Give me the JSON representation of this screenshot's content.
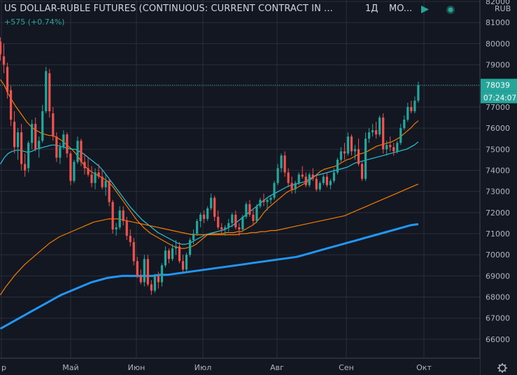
{
  "header": {
    "title": "US DOLLAR-RUBLE FUTURES (CONTINUOUS: CURRENT CONTRACT IN ...",
    "interval": "1Д",
    "exchange": "MO...",
    "change": "+575 (+0.74%)"
  },
  "axis": {
    "currency": "RUB",
    "settings_icon": "gear-icon"
  },
  "colors": {
    "background": "#131722",
    "up": "#26a69a",
    "down": "#ef5350",
    "ma_fast": "#f57c00",
    "ma_mid": "#26c6da",
    "ma_slow": "#f57c00",
    "ma_long": "#2196f3"
  },
  "chart_data": {
    "type": "candlestick",
    "ylim": [
      65300,
      82400
    ],
    "yticks": [
      66000,
      67000,
      68000,
      69000,
      70000,
      71000,
      72000,
      73000,
      74000,
      75000,
      76000,
      77000,
      78000,
      79000,
      80000,
      81000,
      82000
    ],
    "ytick_labels": [
      "66000",
      "67000",
      "68000",
      "69000",
      "70000",
      "71000",
      "72000",
      "73000",
      "74000",
      "75000",
      "76000",
      "77000",
      "78000",
      "79000",
      "80000",
      "81000",
      "82000"
    ],
    "xticks": [
      "Апр",
      "Май",
      "Июн",
      "Июл",
      "Авг",
      "Сен",
      "Окт"
    ],
    "xtick_labels": [
      "р",
      "Май",
      "Июн",
      "Июл",
      "Авг",
      "Сен",
      "Окт"
    ],
    "last_price": {
      "value": 78039,
      "label": "78039",
      "countdown": "07:24:07"
    },
    "ohlc": [
      [
        80100,
        80300,
        79200,
        79500
      ],
      [
        79400,
        80000,
        78600,
        79000
      ],
      [
        78900,
        79100,
        77400,
        77700
      ],
      [
        77800,
        78000,
        76100,
        76400
      ],
      [
        76300,
        76800,
        74800,
        75100
      ],
      [
        75100,
        76000,
        74500,
        75800
      ],
      [
        75800,
        76200,
        74000,
        74300
      ],
      [
        74300,
        74800,
        73700,
        74000
      ],
      [
        74100,
        75400,
        73900,
        75300
      ],
      [
        75300,
        76400,
        75000,
        76200
      ],
      [
        76200,
        76500,
        74900,
        75000
      ],
      [
        75000,
        75600,
        74600,
        75400
      ],
      [
        75400,
        77100,
        75300,
        76800
      ],
      [
        76800,
        78900,
        76700,
        78700
      ],
      [
        78600,
        78800,
        76500,
        76800
      ],
      [
        76700,
        77000,
        75400,
        75600
      ],
      [
        75600,
        75800,
        74400,
        74600
      ],
      [
        74600,
        75300,
        74300,
        75100
      ],
      [
        75100,
        75900,
        75000,
        75700
      ],
      [
        75700,
        75800,
        74600,
        74800
      ],
      [
        74800,
        74900,
        73300,
        73500
      ],
      [
        73500,
        74500,
        73400,
        74400
      ],
      [
        74400,
        75600,
        74300,
        75400
      ],
      [
        75400,
        75500,
        74200,
        74400
      ],
      [
        74400,
        74800,
        73800,
        74100
      ],
      [
        74100,
        74600,
        73700,
        73800
      ],
      [
        73800,
        74200,
        73200,
        73400
      ],
      [
        73400,
        74100,
        73100,
        73900
      ],
      [
        73900,
        74300,
        73600,
        73700
      ],
      [
        73700,
        74000,
        73100,
        73200
      ],
      [
        73200,
        73800,
        72800,
        73500
      ],
      [
        73500,
        73600,
        72300,
        72500
      ],
      [
        72500,
        72600,
        71000,
        71200
      ],
      [
        71200,
        71500,
        70900,
        71300
      ],
      [
        71300,
        72300,
        71200,
        72100
      ],
      [
        72100,
        72300,
        71400,
        71600
      ],
      [
        71600,
        71800,
        70700,
        70900
      ],
      [
        70900,
        71200,
        70400,
        70600
      ],
      [
        70600,
        70800,
        69500,
        69700
      ],
      [
        69700,
        69900,
        68900,
        69000
      ],
      [
        69000,
        69300,
        68600,
        68700
      ],
      [
        68700,
        70000,
        68500,
        69800
      ],
      [
        69800,
        70000,
        68500,
        68600
      ],
      [
        68600,
        68800,
        68100,
        68300
      ],
      [
        68300,
        69100,
        68200,
        69000
      ],
      [
        69000,
        69200,
        68400,
        68700
      ],
      [
        68700,
        69600,
        68500,
        69500
      ],
      [
        69500,
        70400,
        69400,
        70200
      ],
      [
        70200,
        70300,
        69600,
        69800
      ],
      [
        69800,
        70500,
        69700,
        70300
      ],
      [
        70300,
        70700,
        70000,
        70400
      ],
      [
        70400,
        70600,
        69600,
        69700
      ],
      [
        69700,
        70000,
        69200,
        69300
      ],
      [
        69300,
        70100,
        69200,
        70000
      ],
      [
        70000,
        70800,
        69900,
        70700
      ],
      [
        70700,
        71200,
        70500,
        71000
      ],
      [
        71000,
        71700,
        70900,
        71600
      ],
      [
        71600,
        72000,
        71300,
        71900
      ],
      [
        71900,
        72100,
        71500,
        71700
      ],
      [
        71700,
        72300,
        71600,
        72200
      ],
      [
        72200,
        72900,
        72100,
        72700
      ],
      [
        72700,
        72800,
        71600,
        71800
      ],
      [
        71800,
        72100,
        71200,
        71300
      ],
      [
        71300,
        71500,
        71000,
        71200
      ],
      [
        71200,
        71400,
        70900,
        71300
      ],
      [
        71300,
        71700,
        71100,
        71500
      ],
      [
        71500,
        72000,
        71300,
        71900
      ],
      [
        71900,
        72100,
        71200,
        71300
      ],
      [
        71300,
        71500,
        70900,
        71200
      ],
      [
        71200,
        71900,
        71100,
        71800
      ],
      [
        71800,
        72500,
        71700,
        72400
      ],
      [
        72400,
        72600,
        71800,
        71900
      ],
      [
        71900,
        72200,
        71400,
        71600
      ],
      [
        71600,
        72400,
        71500,
        72300
      ],
      [
        72300,
        72700,
        72200,
        72600
      ],
      [
        72600,
        72900,
        72300,
        72500
      ],
      [
        72500,
        72700,
        72100,
        72600
      ],
      [
        72600,
        72800,
        72400,
        72700
      ],
      [
        72700,
        73500,
        72600,
        73400
      ],
      [
        73400,
        74300,
        73300,
        74100
      ],
      [
        74100,
        74800,
        73900,
        74700
      ],
      [
        74700,
        74900,
        73700,
        73900
      ],
      [
        73900,
        74100,
        73200,
        73400
      ],
      [
        73400,
        73700,
        72900,
        73100
      ],
      [
        73100,
        73500,
        72900,
        73400
      ],
      [
        73400,
        73900,
        73300,
        73800
      ],
      [
        73800,
        74200,
        73600,
        73700
      ],
      [
        73700,
        73900,
        73200,
        73300
      ],
      [
        73300,
        73900,
        73200,
        73800
      ],
      [
        73800,
        74100,
        73500,
        73600
      ],
      [
        73600,
        73800,
        73000,
        73100
      ],
      [
        73100,
        73500,
        73000,
        73400
      ],
      [
        73400,
        73800,
        73300,
        73700
      ],
      [
        73700,
        73900,
        73200,
        73300
      ],
      [
        73300,
        73600,
        73100,
        73500
      ],
      [
        73500,
        74100,
        73400,
        73900
      ],
      [
        73900,
        74600,
        73800,
        74500
      ],
      [
        74500,
        75100,
        74400,
        74900
      ],
      [
        74900,
        75300,
        74500,
        74800
      ],
      [
        74800,
        75800,
        74700,
        75600
      ],
      [
        75600,
        75700,
        74700,
        74900
      ],
      [
        74900,
        75200,
        74500,
        75000
      ],
      [
        75000,
        75500,
        74200,
        74300
      ],
      [
        74300,
        74400,
        73500,
        73600
      ],
      [
        73600,
        75800,
        73500,
        75500
      ],
      [
        75500,
        76000,
        75300,
        75800
      ],
      [
        75800,
        76200,
        75600,
        75900
      ],
      [
        75900,
        76300,
        75500,
        75700
      ],
      [
        75700,
        76600,
        75600,
        76500
      ],
      [
        76500,
        76700,
        74800,
        75000
      ],
      [
        75000,
        75400,
        74700,
        75200
      ],
      [
        75200,
        75600,
        74900,
        75100
      ],
      [
        75100,
        75300,
        74700,
        74900
      ],
      [
        74900,
        75400,
        74800,
        75300
      ],
      [
        75300,
        76200,
        75200,
        76000
      ],
      [
        76000,
        76600,
        75900,
        76400
      ],
      [
        76400,
        77200,
        76300,
        77000
      ],
      [
        77000,
        77300,
        76700,
        76800
      ],
      [
        76800,
        77500,
        76700,
        77300
      ],
      [
        77300,
        78200,
        77200,
        78039
      ]
    ],
    "series": [
      {
        "values": [
          78300,
          78050,
          77650,
          77350,
          77050,
          76800,
          76550,
          76300,
          76100,
          75950,
          75850,
          75750,
          75700,
          75650,
          75650,
          75550,
          75450,
          75300,
          75150,
          75000,
          74800,
          74550,
          74300,
          74100,
          73950,
          73850,
          73750,
          73650,
          73550,
          73400,
          73200,
          72950,
          72700,
          72450,
          72200,
          71950,
          71700,
          71500,
          71300,
          71150,
          71000,
          70900,
          70800,
          70700,
          70600,
          70500,
          70400,
          70350,
          70300,
          70300,
          70350,
          70400,
          70500,
          70650,
          70800,
          70950,
          71000,
          71000,
          71000,
          71000,
          71050,
          71050,
          71050,
          71100,
          71100,
          71200,
          71300,
          71400,
          71550,
          71750,
          72000,
          72200,
          72350,
          72500,
          72650,
          72800,
          72950,
          73050,
          73100,
          73200,
          73300,
          73400,
          73500,
          73650,
          73800,
          73950,
          74050,
          74100,
          74150,
          74200,
          74300,
          74400,
          74500,
          74550,
          74650,
          74750,
          74800,
          74850,
          74950,
          75050,
          75150,
          75200,
          75250,
          75300,
          75350,
          75450,
          75550,
          75700,
          75850,
          76000,
          76200,
          76350
        ]
      },
      {
        "values": [
          74300,
          74600,
          74800,
          74900,
          74950,
          74950,
          74900,
          74850,
          74900,
          75000,
          75050,
          75100,
          75150,
          75200,
          75200,
          75150,
          75100,
          75050,
          75000,
          75000,
          74900,
          74800,
          74650,
          74500,
          74350,
          74200,
          74000,
          73750,
          73500,
          73250,
          73000,
          72750,
          72500,
          72250,
          72050,
          71850,
          71650,
          71500,
          71350,
          71200,
          71050,
          70950,
          70850,
          70750,
          70650,
          70550,
          70500,
          70500,
          70550,
          70650,
          70750,
          70850,
          70950,
          71000,
          71050,
          71100,
          71150,
          71200,
          71300,
          71400,
          71550,
          71700,
          71850,
          72000,
          72150,
          72300,
          72450,
          72600,
          72750,
          72850,
          72950,
          73050,
          73150,
          73250,
          73300,
          73350,
          73400,
          73450,
          73550,
          73650,
          73750,
          73800,
          73850,
          73900,
          73950,
          74000,
          74050,
          74100,
          74150,
          74250,
          74350,
          74400,
          74450,
          74500,
          74550,
          74600,
          74650,
          74700,
          74750,
          74800,
          74850,
          74900,
          74950,
          75000,
          75100,
          75200,
          75350
        ]
      },
      {
        "values": [
          68100,
          68450,
          68750,
          69050,
          69300,
          69550,
          69750,
          69950,
          70150,
          70350,
          70550,
          70700,
          70850,
          70950,
          71050,
          71150,
          71250,
          71350,
          71450,
          71550,
          71600,
          71650,
          71700,
          71700,
          71700,
          71650,
          71600,
          71550,
          71500,
          71450,
          71400,
          71350,
          71300,
          71250,
          71200,
          71150,
          71100,
          71050,
          71000,
          70950,
          70950,
          70950,
          70950,
          70950,
          70950,
          70950,
          70950,
          70950,
          70950,
          71000,
          71000,
          71050,
          71050,
          71100,
          71100,
          71150,
          71150,
          71200,
          71250,
          71300,
          71350,
          71400,
          71450,
          71500,
          71550,
          71600,
          71650,
          71700,
          71750,
          71800,
          71850,
          71950,
          72050,
          72150,
          72250,
          72350,
          72450,
          72550,
          72650,
          72750,
          72850,
          72950,
          73050,
          73150,
          73250,
          73350
        ]
      },
      {
        "values": [
          66500,
          66700,
          66900,
          67100,
          67300,
          67500,
          67700,
          67900,
          68100,
          68250,
          68400,
          68550,
          68700,
          68800,
          68900,
          68950,
          69000,
          69000,
          69000,
          69000,
          69000,
          69050,
          69050,
          69100,
          69150,
          69200,
          69250,
          69300,
          69350,
          69400,
          69450,
          69500,
          69550,
          69600,
          69650,
          69700,
          69750,
          69800,
          69850,
          69900,
          70000,
          70100,
          70200,
          70300,
          70400,
          70500,
          70600,
          70700,
          70800,
          70900,
          71000,
          71100,
          71200,
          71300,
          71400,
          71450
        ]
      }
    ]
  }
}
